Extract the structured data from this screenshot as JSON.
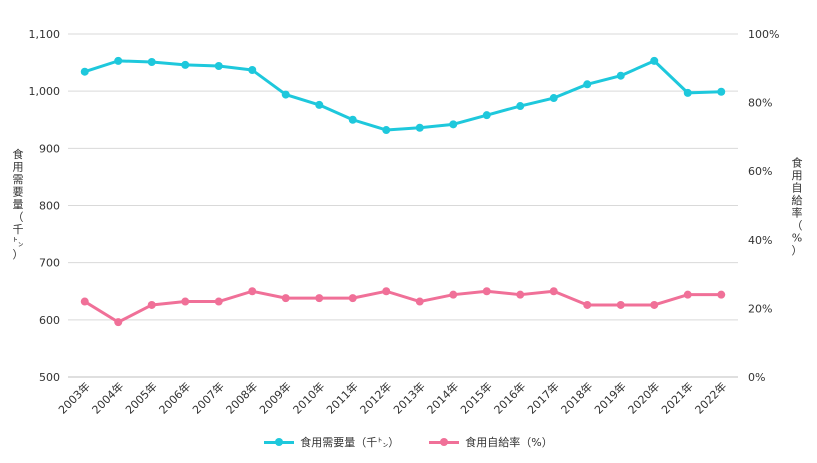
{
  "chart_data": {
    "type": "line",
    "categories": [
      "2003年",
      "2004年",
      "2005年",
      "2006年",
      "2007年",
      "2008年",
      "2009年",
      "2010年",
      "2011年",
      "2012年",
      "2013年",
      "2014年",
      "2015年",
      "2016年",
      "2017年",
      "2018年",
      "2019年",
      "2020年",
      "2021年",
      "2022年"
    ],
    "series": [
      {
        "name": "食用需要量（千㌧）",
        "axis": "left",
        "color": "#1ec8dc",
        "values": [
          1034,
          1053,
          1051,
          1046,
          1044,
          1037,
          994,
          976,
          950,
          932,
          936,
          942,
          958,
          974,
          988,
          1012,
          1027,
          1053,
          997,
          999
        ]
      },
      {
        "name": "食用自給率（%）",
        "axis": "right",
        "color": "#f07098",
        "values": [
          22,
          16,
          21,
          22,
          22,
          25,
          23,
          23,
          23,
          25,
          22,
          24,
          25,
          24,
          25,
          21,
          21,
          21,
          24,
          24
        ]
      }
    ],
    "y_left": {
      "label": "食用需要量（千㌧）",
      "min": 500,
      "max": 1100,
      "ticks": [
        "500",
        "600",
        "700",
        "800",
        "900",
        "1,000",
        "1,100"
      ]
    },
    "y_right": {
      "label": "食用自給率（%）",
      "min": 0,
      "max": 100,
      "ticks": [
        "0%",
        "20%",
        "40%",
        "60%",
        "80%",
        "100%"
      ]
    },
    "grid": true,
    "legend_position": "bottom"
  }
}
